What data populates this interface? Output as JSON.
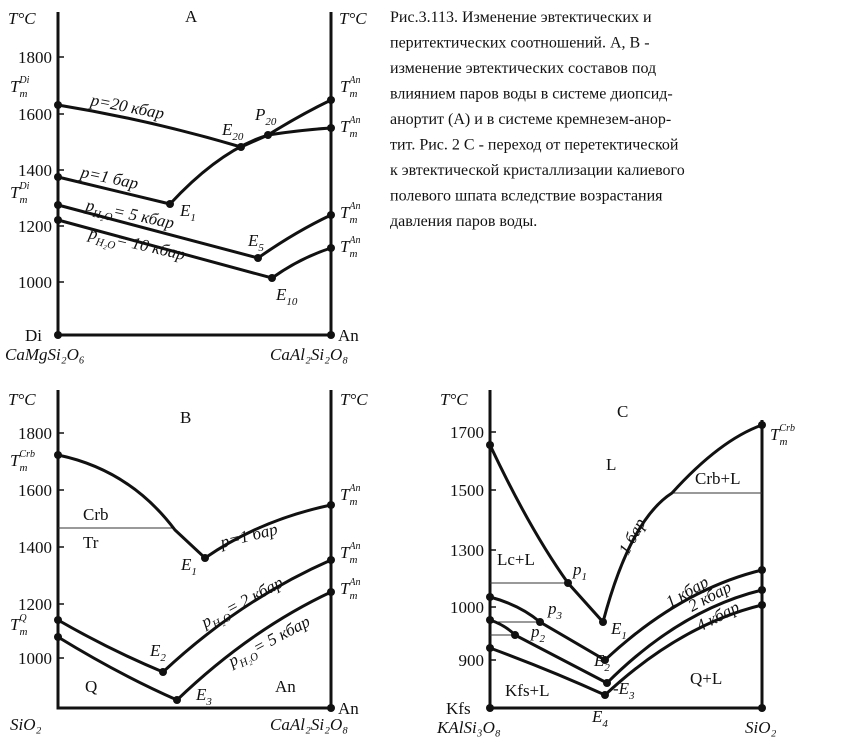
{
  "caption": [
    "Рис.3.113. Изменение эвтектических и",
    "перитектических соотношений. A, B -",
    "изменение эвтектических составов под",
    "влиянием паров воды в системе диопсид-",
    "анортит (A) и в системе кремнезем-анор-",
    "тит. Рис. 2 C - переход от перетектической",
    "к эвтектической кристаллизации калиевого",
    "полевого шпата вследствие возрастания",
    "давления паров воды."
  ],
  "panels": [
    {
      "title": "A",
      "axis_title_left": "T°C",
      "axis_title_right": "T°C",
      "yticks": [
        1800,
        1600,
        1400,
        1200,
        1000
      ],
      "left_end": "Di",
      "right_end": "An",
      "left_formula": "CaMgSi₂O₆",
      "right_formula": "CaAl₂Si₂O₈",
      "melting_points": [
        {
          "text": "T",
          "sub": "m",
          "sup": "Di"
        },
        {
          "text": "T",
          "sub": "m",
          "sup": "Di"
        },
        {
          "text": "T",
          "sub": "m",
          "sup": "An"
        },
        {
          "text": "T",
          "sub": "m",
          "sup": "An"
        },
        {
          "text": "T",
          "sub": "m",
          "sup": "An"
        },
        {
          "text": "T",
          "sub": "m",
          "sup": "An"
        }
      ],
      "point_labels": [
        {
          "text": "E",
          "sub": "20"
        },
        {
          "text": "P",
          "sub": "20"
        },
        {
          "text": "E",
          "sub": "1"
        },
        {
          "text": "E",
          "sub": "5"
        },
        {
          "text": "E",
          "sub": "10"
        }
      ],
      "curve_labels": [
        "p=20 кбар",
        "p=1 бар",
        {
          "text": "p",
          "sub": "H₂O",
          "rest": "= 5 кбар"
        },
        {
          "text": "p",
          "sub": "H₂O",
          "rest": "= 10 кбар"
        }
      ]
    },
    {
      "title": "B",
      "axis_title_left": "T°C",
      "axis_title_right": "T°C",
      "yticks": [
        1800,
        1600,
        1400,
        1200,
        1000
      ],
      "left_formula": "SiO₂",
      "right_formula": "CaAl₂Si₂O₈",
      "right_end": "An",
      "fields": [
        "Crb",
        "Tr",
        "Q",
        "An"
      ],
      "melting_points": [
        {
          "text": "T",
          "sub": "m",
          "sup": "Crb"
        },
        {
          "text": "T",
          "sub": "m",
          "sup": "Q"
        },
        {
          "text": "T",
          "sub": "m",
          "sup": "An"
        },
        {
          "text": "T",
          "sub": "m",
          "sup": "An"
        },
        {
          "text": "T",
          "sub": "m",
          "sup": "An"
        }
      ],
      "point_labels": [
        {
          "text": "E",
          "sub": "1"
        },
        {
          "text": "E",
          "sub": "2"
        },
        {
          "text": "E",
          "sub": "3"
        }
      ],
      "curve_labels": [
        "p=1 бар",
        {
          "text": "p",
          "sub": "H₂O",
          "rest": "= 2 кбар"
        },
        {
          "text": "p",
          "sub": "H₂O",
          "rest": "= 5 кбар"
        }
      ]
    },
    {
      "title": "C",
      "axis_title_left": "T°C",
      "yticks": [
        1700,
        1500,
        1300,
        1000,
        900
      ],
      "left_end": "Kfs",
      "left_formula": "KAlSi₃O₈",
      "right_formula": "SiO₂",
      "fields": [
        "L",
        "Crb+L",
        "Lc+L",
        "Kfs+L",
        "Q+L"
      ],
      "melting_points": [
        {
          "text": "T",
          "sub": "m",
          "sup": "Crb"
        }
      ],
      "point_labels": [
        {
          "text": "p",
          "sub": "1"
        },
        {
          "text": "p",
          "sub": "3"
        },
        {
          "text": "p",
          "sub": "2"
        },
        {
          "text": "E",
          "sub": "1"
        },
        {
          "text": "E",
          "sub": "2"
        },
        {
          "text": "-E",
          "sub": "3"
        },
        {
          "text": "E",
          "sub": "4"
        }
      ],
      "curve_labels": [
        "1 бар",
        "1 кбар",
        "2 кбар",
        "4 кбар"
      ]
    }
  ]
}
